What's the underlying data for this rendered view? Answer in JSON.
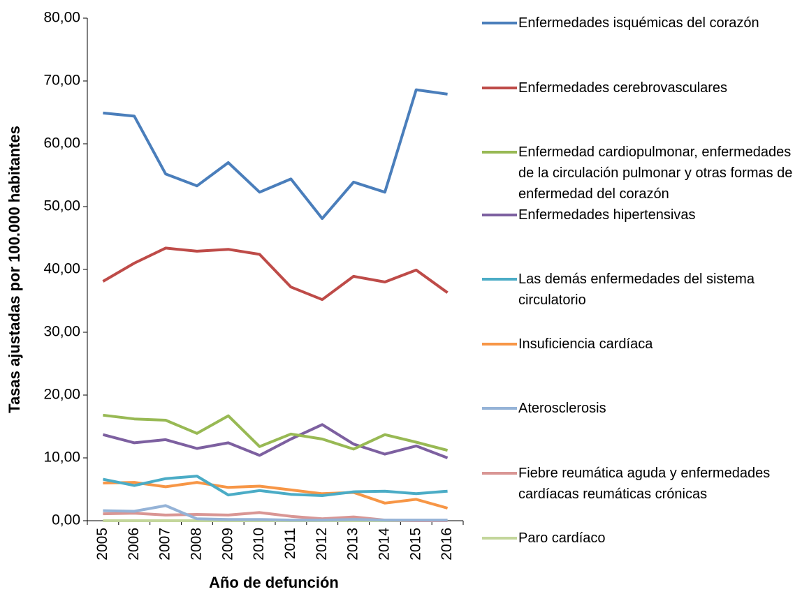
{
  "chart_data": {
    "type": "line",
    "x_label": "Año de defunción",
    "y_label": "Tasas ajustadas por 100.000 habitantes",
    "categories": [
      "2005",
      "2006",
      "2007",
      "2008",
      "2009",
      "2010",
      "2011",
      "2012",
      "2013",
      "2014",
      "2015",
      "2016"
    ],
    "ylim": [
      0,
      80
    ],
    "yticks": [
      {
        "value": 0,
        "label": "0,00"
      },
      {
        "value": 10,
        "label": "10,00"
      },
      {
        "value": 20,
        "label": "20,00"
      },
      {
        "value": 30,
        "label": "30,00"
      },
      {
        "value": 40,
        "label": "40,00"
      },
      {
        "value": 50,
        "label": "50,00"
      },
      {
        "value": 60,
        "label": "60,00"
      },
      {
        "value": 70,
        "label": "70,00"
      },
      {
        "value": 80,
        "label": "80,00"
      }
    ],
    "series": [
      {
        "name": "Enfermedades isquémicas del corazón",
        "color": "#4a7ebb",
        "values": [
          64.9,
          64.4,
          55.2,
          53.3,
          57.0,
          52.3,
          54.4,
          48.1,
          53.9,
          52.3,
          68.6,
          67.9
        ]
      },
      {
        "name": "Enfermedades cerebrovasculares",
        "color": "#be4b48",
        "values": [
          38.1,
          41.0,
          43.4,
          42.9,
          43.2,
          42.4,
          37.2,
          35.2,
          38.9,
          38.0,
          39.9,
          36.3
        ]
      },
      {
        "name": "Enfermedad cardiopulmonar, enfermedades de la circulación pulmonar y otras formas de enfermedad del corazón",
        "color": "#98b954",
        "values": [
          16.8,
          16.2,
          16.0,
          13.9,
          16.7,
          11.8,
          13.8,
          13.0,
          11.4,
          13.7,
          12.5,
          11.2
        ]
      },
      {
        "name": "Enfermedades hipertensivas",
        "color": "#7d60a0",
        "values": [
          13.7,
          12.4,
          12.9,
          11.5,
          12.4,
          10.4,
          13.0,
          15.3,
          12.2,
          10.6,
          11.9,
          10.0
        ]
      },
      {
        "name": "Las demás enfermedades del sistema circulatorio",
        "color": "#4bacc6",
        "values": [
          6.6,
          5.6,
          6.7,
          7.1,
          4.1,
          4.8,
          4.2,
          4.0,
          4.6,
          4.7,
          4.3,
          4.7
        ]
      },
      {
        "name": "Insuficiencia cardíaca",
        "color": "#f79646",
        "values": [
          6.0,
          6.1,
          5.4,
          6.1,
          5.3,
          5.5,
          4.9,
          4.3,
          4.5,
          2.8,
          3.4,
          2.0
        ]
      },
      {
        "name": "Aterosclerosis",
        "color": "#95b3d7",
        "values": [
          1.6,
          1.5,
          2.4,
          0.3,
          0.2,
          0.2,
          0.1,
          0.1,
          0.2,
          0.1,
          0.1,
          0.1
        ]
      },
      {
        "name": "Fiebre reumática aguda y enfermedades cardíacas reumáticas crónicas",
        "color": "#d99694",
        "values": [
          1.1,
          1.2,
          0.9,
          1.0,
          0.9,
          1.3,
          0.7,
          0.3,
          0.6,
          0.1,
          0.0,
          0.0
        ]
      },
      {
        "name": "Paro cardíaco",
        "color": "#c3d69b",
        "values": [
          0,
          0,
          0,
          0,
          0,
          0,
          0,
          0,
          0,
          0,
          0,
          0
        ]
      }
    ]
  }
}
